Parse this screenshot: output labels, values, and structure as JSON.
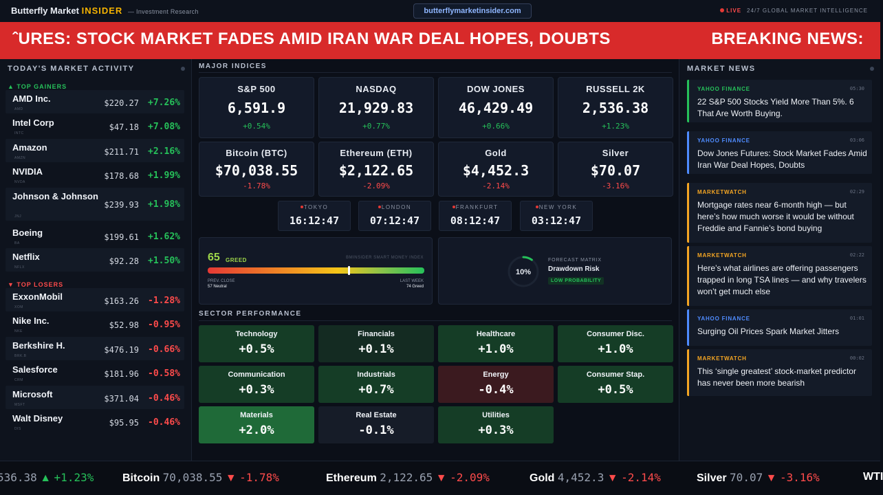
{
  "header": {
    "brand_a": "Butterfly Market",
    "brand_b": "INSIDER",
    "brand_sub": "— Investment Research",
    "url": "butterflymarketinsider.com",
    "live_label": "LIVE",
    "live_tagline": "24/7 GLOBAL MARKET INTELLIGENCE"
  },
  "breaking": {
    "headline": "ˆURES: STOCK MARKET FADES AMID IRAN WAR DEAL HOPES, DOUBTS",
    "label": "BREAKING NEWS:"
  },
  "left_panel": {
    "title": "TODAY'S MARKET ACTIVITY",
    "gainers_label": "▲ TOP GAINERS",
    "losers_label": "▼ TOP LOSERS",
    "gainers": [
      {
        "name": "AMD Inc.",
        "ticker": "AMD",
        "price": "$220.27",
        "change": "+7.26%"
      },
      {
        "name": "Intel Corp",
        "ticker": "INTC",
        "price": "$47.18",
        "change": "+7.08%"
      },
      {
        "name": "Amazon",
        "ticker": "AMZN",
        "price": "$211.71",
        "change": "+2.16%"
      },
      {
        "name": "NVIDIA",
        "ticker": "NVDA",
        "price": "$178.68",
        "change": "+1.99%"
      },
      {
        "name": "Johnson & Johnson",
        "ticker": "JNJ",
        "price": "$239.93",
        "change": "+1.98%"
      },
      {
        "name": "Boeing",
        "ticker": "BA",
        "price": "$199.61",
        "change": "+1.62%"
      },
      {
        "name": "Netflix",
        "ticker": "NFLX",
        "price": "$92.28",
        "change": "+1.50%"
      }
    ],
    "losers": [
      {
        "name": "ExxonMobil",
        "ticker": "XOM",
        "price": "$163.26",
        "change": "-1.28%"
      },
      {
        "name": "Nike Inc.",
        "ticker": "NKE",
        "price": "$52.98",
        "change": "-0.95%"
      },
      {
        "name": "Berkshire H.",
        "ticker": "BRK.B",
        "price": "$476.19",
        "change": "-0.66%"
      },
      {
        "name": "Salesforce",
        "ticker": "CRM",
        "price": "$181.96",
        "change": "-0.58%"
      },
      {
        "name": "Microsoft",
        "ticker": "MSFT",
        "price": "$371.04",
        "change": "-0.46%"
      },
      {
        "name": "Walt Disney",
        "ticker": "DIS",
        "price": "$95.95",
        "change": "-0.46%"
      }
    ]
  },
  "indices": {
    "title": "MAJOR INDICES",
    "cards": [
      {
        "name": "S&P 500",
        "value": "6,591.9",
        "change": "+0.54%"
      },
      {
        "name": "NASDAQ",
        "value": "21,929.83",
        "change": "+0.77%"
      },
      {
        "name": "DOW JONES",
        "value": "46,429.49",
        "change": "+0.66%"
      },
      {
        "name": "RUSSELL 2K",
        "value": "2,536.38",
        "change": "+1.23%"
      },
      {
        "name": "Bitcoin (BTC)",
        "value": "$70,038.55",
        "change": "-1.78%"
      },
      {
        "name": "Ethereum (ETH)",
        "value": "$2,122.65",
        "change": "-2.09%"
      },
      {
        "name": "Gold",
        "value": "$4,452.3",
        "change": "-2.14%"
      },
      {
        "name": "Silver",
        "value": "$70.07",
        "change": "-3.16%"
      }
    ]
  },
  "clocks": [
    {
      "city": "TOKYO",
      "time": "16:12:47"
    },
    {
      "city": "LONDON",
      "time": "07:12:47"
    },
    {
      "city": "FRANKFURT",
      "time": "08:12:47"
    },
    {
      "city": "NEW YORK",
      "time": "03:12:47"
    }
  ],
  "sentiment": {
    "value": "65",
    "label": "GREED",
    "index_name": "BMINSIDER SMART MONEY INDEX",
    "level": 0.65,
    "prev_label": "PREV. CLOSE",
    "prev_value": "57 Neutral",
    "week_label": "LAST WEEK",
    "week_value": "74 Greed"
  },
  "forecast": {
    "percent": "10%",
    "level": 0.1,
    "label": "FORECAST MATRIX",
    "name": "Drawdown Risk",
    "badge": "LOW PROBABILITY"
  },
  "sectors": {
    "title": "SECTOR PERFORMANCE",
    "items": [
      {
        "name": "Technology",
        "value": "+0.5%",
        "tone": "up"
      },
      {
        "name": "Financials",
        "value": "+0.1%",
        "tone": "flat"
      },
      {
        "name": "Healthcare",
        "value": "+1.0%",
        "tone": "up"
      },
      {
        "name": "Consumer Disc.",
        "value": "+1.0%",
        "tone": "up"
      },
      {
        "name": "Communication",
        "value": "+0.3%",
        "tone": "up"
      },
      {
        "name": "Industrials",
        "value": "+0.7%",
        "tone": "up"
      },
      {
        "name": "Energy",
        "value": "-0.4%",
        "tone": "down"
      },
      {
        "name": "Consumer Stap.",
        "value": "+0.5%",
        "tone": "up"
      },
      {
        "name": "Materials",
        "value": "+2.0%",
        "tone": "strong"
      },
      {
        "name": "Real Estate",
        "value": "-0.1%",
        "tone": "neutral"
      },
      {
        "name": "Utilities",
        "value": "+0.3%",
        "tone": "up"
      }
    ]
  },
  "news": {
    "title": "MARKET NEWS",
    "items": [
      {
        "source": "YAHOO FINANCE",
        "time": "05:30",
        "headline": "22 S&P 500 Stocks Yield More Than 5%. 6 That Are Worth Buying."
      },
      {
        "source": "YAHOO FINANCE",
        "time": "03:06",
        "headline": "Dow Jones Futures: Stock Market Fades Amid Iran War Deal Hopes, Doubts"
      },
      {
        "source": "MARKETWATCH",
        "time": "02:29",
        "headline": "Mortgage rates near 6-month high — but here’s how much worse it would be without Freddie and Fannie’s bond buying"
      },
      {
        "source": "MARKETWATCH",
        "time": "02:22",
        "headline": "Here’s what airlines are offering passengers trapped in long TSA lines — and why travelers won’t get much else"
      },
      {
        "source": "YAHOO FINANCE",
        "time": "01:01",
        "headline": "Surging Oil Prices Spark Market Jitters"
      },
      {
        "source": "MARKETWATCH",
        "time": "00:02",
        "headline": "This ‘single greatest’ stock-market predictor has never been more bearish"
      }
    ]
  },
  "ticker": [
    {
      "name": "",
      "value": "536.38",
      "arrow": "▲",
      "change": "+1.23%"
    },
    {
      "name": "Bitcoin",
      "value": "70,038.55",
      "arrow": "▼",
      "change": "-1.78%"
    },
    {
      "name": "Ethereum",
      "value": "2,122.65",
      "arrow": "▼",
      "change": "-2.09%"
    },
    {
      "name": "Gold",
      "value": "4,452.3",
      "arrow": "▼",
      "change": "-2.14%"
    },
    {
      "name": "Silver",
      "value": "70.07",
      "arrow": "▼",
      "change": "-3.16%"
    },
    {
      "name": "WTI",
      "value": "",
      "arrow": "",
      "change": ""
    }
  ],
  "colors": {
    "accent": "#f5b301",
    "breaking_bg": "#d82a2a",
    "up": "#26c15a",
    "down": "#ff4b4b",
    "yahoo": "#4f8cff",
    "marketwatch": "#f5a623"
  }
}
